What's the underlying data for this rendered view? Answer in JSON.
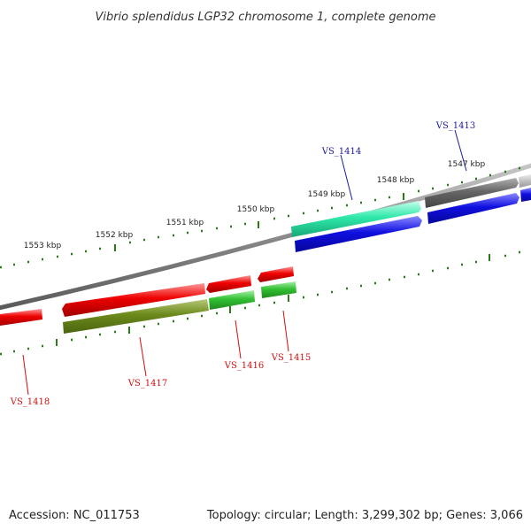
{
  "title": "Vibrio splendidus LGP32 chromosome 1, complete genome",
  "footer": {
    "accession": "Accession: NC_011753",
    "summary": "Topology: circular; Length: 3,299,302 bp; Genes: 3,066"
  },
  "colors": {
    "backbone": "#888888",
    "tick": "#2a7a1a",
    "forward_label": "#1a1aa0",
    "reverse_label": "#d01010",
    "red": "#e60000",
    "olive": "#6b8a1a",
    "green": "#33c033",
    "teal": "#2ee8a8",
    "blue": "#1010e0",
    "darkgray": "#707070",
    "lightgray": "#c0c0c0"
  },
  "scale_labels": [
    "1547 kbp",
    "1548 kbp",
    "1549 kbp",
    "1550 kbp",
    "1551 kbp",
    "1552 kbp",
    "1553 kbp"
  ],
  "genes": [
    {
      "label": "VS_1413",
      "strand": "forward"
    },
    {
      "label": "VS_1414",
      "strand": "forward"
    },
    {
      "label": "VS_1415",
      "strand": "reverse"
    },
    {
      "label": "VS_1416",
      "strand": "reverse"
    },
    {
      "label": "VS_1417",
      "strand": "reverse"
    },
    {
      "label": "VS_1418",
      "strand": "reverse"
    }
  ]
}
